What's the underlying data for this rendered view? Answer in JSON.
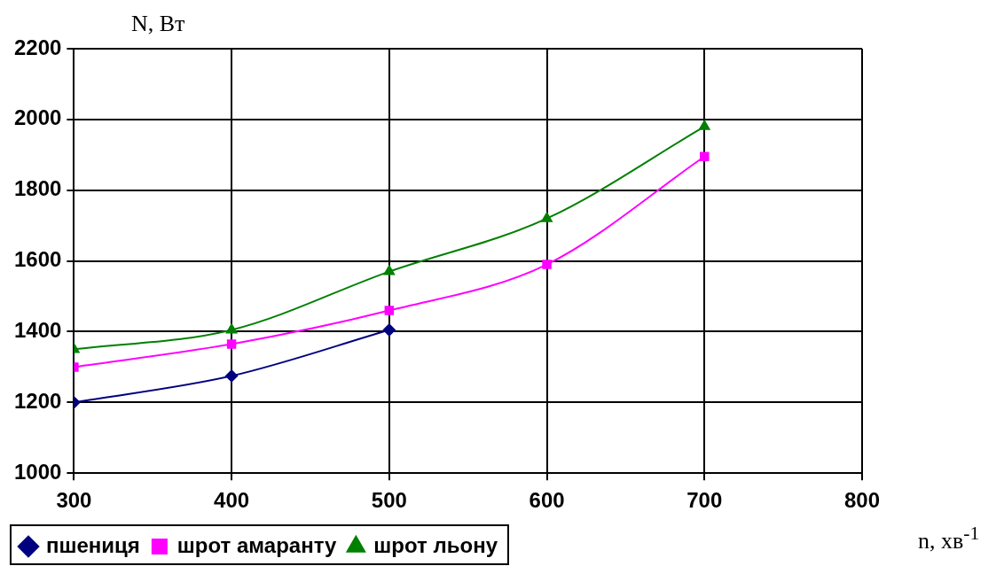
{
  "chart_data": {
    "type": "line",
    "xlabel": "n, хв$^{-1}$",
    "ylabel": "N, Вт",
    "x": [
      300,
      400,
      500,
      600,
      700
    ],
    "series": [
      {
        "name": "пшениця",
        "color": "#000080",
        "marker": "diamond",
        "values": [
          1200,
          1275,
          1405,
          null,
          null
        ]
      },
      {
        "name": "шрот амаранту",
        "color": "#ff00ff",
        "marker": "square",
        "values": [
          1300,
          1365,
          1460,
          1590,
          1895
        ]
      },
      {
        "name": "шрот льону",
        "color": "#008000",
        "marker": "triangle",
        "values": [
          1350,
          1405,
          1570,
          1720,
          1980
        ]
      }
    ],
    "xlim": [
      300,
      800
    ],
    "xticks": [
      300,
      400,
      500,
      600,
      700,
      800
    ],
    "ylim": [
      1000,
      2200
    ],
    "yticks": [
      1000,
      1200,
      1400,
      1600,
      1800,
      2000,
      2200
    ],
    "grid": true,
    "legend": "bottom"
  }
}
